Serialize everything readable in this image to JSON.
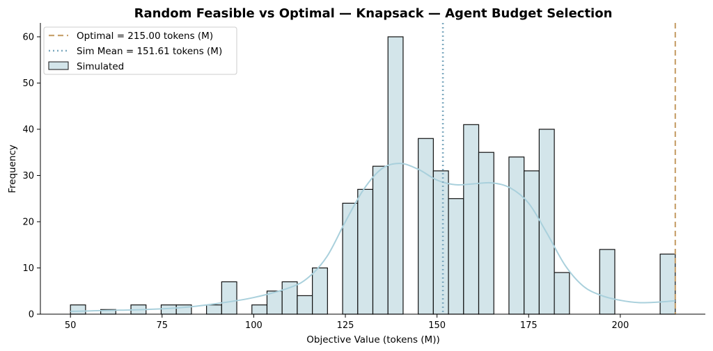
{
  "chart_data": {
    "type": "bar",
    "title": "Random Feasible vs Optimal — Knapsack — Agent Budget Selection",
    "xlabel": "Objective Value (tokens (M))",
    "ylabel": "Frequency",
    "xlim": [
      41.8,
      223.2
    ],
    "ylim": [
      0,
      63
    ],
    "xticks": [
      50,
      75,
      100,
      125,
      150,
      175,
      200
    ],
    "yticks": [
      0,
      10,
      20,
      30,
      40,
      50,
      60
    ],
    "bin_width": 4.125,
    "bins": [
      {
        "x0": 50.0,
        "count": 2
      },
      {
        "x0": 54.125,
        "count": 0
      },
      {
        "x0": 58.25,
        "count": 1
      },
      {
        "x0": 62.375,
        "count": 0
      },
      {
        "x0": 66.5,
        "count": 2
      },
      {
        "x0": 70.625,
        "count": 0
      },
      {
        "x0": 74.75,
        "count": 2
      },
      {
        "x0": 78.875,
        "count": 2
      },
      {
        "x0": 83.0,
        "count": 0
      },
      {
        "x0": 87.125,
        "count": 2
      },
      {
        "x0": 91.25,
        "count": 7
      },
      {
        "x0": 95.375,
        "count": 0
      },
      {
        "x0": 99.5,
        "count": 2
      },
      {
        "x0": 103.625,
        "count": 5
      },
      {
        "x0": 107.75,
        "count": 7
      },
      {
        "x0": 111.875,
        "count": 4
      },
      {
        "x0": 116.0,
        "count": 10
      },
      {
        "x0": 120.125,
        "count": 0
      },
      {
        "x0": 124.25,
        "count": 24
      },
      {
        "x0": 128.375,
        "count": 27
      },
      {
        "x0": 132.5,
        "count": 32
      },
      {
        "x0": 136.625,
        "count": 60
      },
      {
        "x0": 140.75,
        "count": 0
      },
      {
        "x0": 144.875,
        "count": 38
      },
      {
        "x0": 149.0,
        "count": 31
      },
      {
        "x0": 153.125,
        "count": 25
      },
      {
        "x0": 157.25,
        "count": 41
      },
      {
        "x0": 161.375,
        "count": 35
      },
      {
        "x0": 165.5,
        "count": 0
      },
      {
        "x0": 169.625,
        "count": 34
      },
      {
        "x0": 173.75,
        "count": 31
      },
      {
        "x0": 177.875,
        "count": 40
      },
      {
        "x0": 182.0,
        "count": 9
      },
      {
        "x0": 186.125,
        "count": 0
      },
      {
        "x0": 190.25,
        "count": 0
      },
      {
        "x0": 194.375,
        "count": 14
      },
      {
        "x0": 198.5,
        "count": 0
      },
      {
        "x0": 202.625,
        "count": 0
      },
      {
        "x0": 206.75,
        "count": 0
      },
      {
        "x0": 210.875,
        "count": 13
      }
    ],
    "kde": [
      [
        50,
        0.6
      ],
      [
        60,
        0.8
      ],
      [
        70,
        1.0
      ],
      [
        80,
        1.4
      ],
      [
        90,
        2.3
      ],
      [
        100,
        3.6
      ],
      [
        110,
        5.8
      ],
      [
        115,
        8.0
      ],
      [
        120,
        12.5
      ],
      [
        125,
        20.0
      ],
      [
        130,
        27.0
      ],
      [
        135,
        31.5
      ],
      [
        140,
        32.6
      ],
      [
        145,
        31.3
      ],
      [
        150,
        29.0
      ],
      [
        155,
        28.0
      ],
      [
        160,
        28.2
      ],
      [
        165,
        28.4
      ],
      [
        170,
        27.3
      ],
      [
        175,
        24.0
      ],
      [
        180,
        17.5
      ],
      [
        185,
        10.5
      ],
      [
        190,
        6.0
      ],
      [
        195,
        4.0
      ],
      [
        200,
        3.0
      ],
      [
        205,
        2.5
      ],
      [
        210,
        2.6
      ],
      [
        215,
        2.9
      ]
    ],
    "reference_lines": [
      {
        "name": "Optimal = 215.00 tokens (M)",
        "x": 215.0,
        "style": "dashed",
        "color": "#c8a26e"
      },
      {
        "name": "Sim Mean = 151.61 tokens (M)",
        "x": 151.61,
        "style": "dotted",
        "color": "#7da9bf"
      }
    ],
    "series_label": "Simulated",
    "legend_position": "top-left",
    "bar_fill": "#d3e5ea",
    "bar_edge": "#111111",
    "kde_color": "#a9d0dc",
    "grid": false
  }
}
